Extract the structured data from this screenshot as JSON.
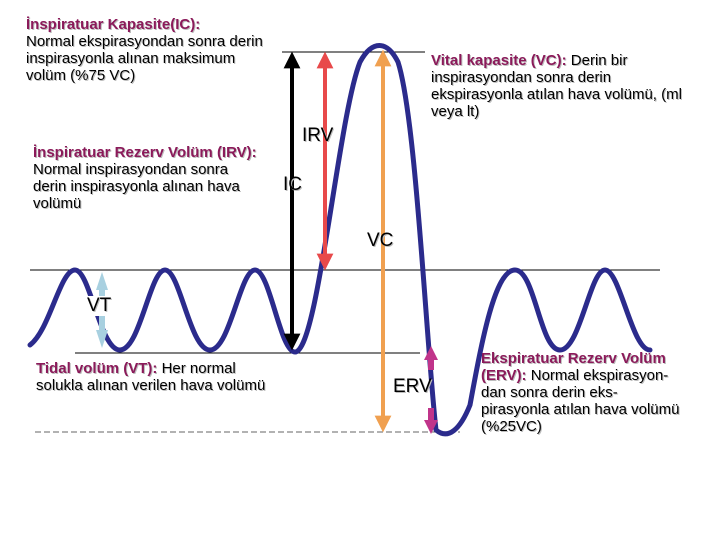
{
  "ic_definition": {
    "term": "İnspiratuar Kapasite(IC):",
    "text": "Normal ekspirasyondan sonra derin inspirasyonla alınan maksimum volüm (%75 VC)"
  },
  "irv_definition": {
    "term": "İnspiratuar Rezerv Volüm (IRV):",
    "text": "Normal inspirasyondan sonra derin inspirasyonla alınan hava volümü"
  },
  "vc_definition": {
    "term": "Vital kapasite (VC):",
    "text": "Derin bir inspirasyondan sonra derin ekspirasyonla atılan hava volümü, (ml veya lt)"
  },
  "vt_definition": {
    "term": "Tidal volüm (VT):",
    "text": "Her normal solukla alınan verilen hava volümü"
  },
  "erv_definition": {
    "term": "Ekspiratuar Rezerv Volüm (ERV):",
    "text": "Normal ekspirasyon-dan sonra derin eks-pirasyonla atılan hava volümü (%25VC)"
  },
  "labels": {
    "irv": "IRV",
    "ic": "IC",
    "vc": "VC",
    "vt": "VT",
    "erv": "ERV"
  },
  "colors": {
    "wave": "#2b2b8c",
    "irv_arrow": "#e8494a",
    "vc_arrow": "#f0a050",
    "ic_arrow": "#000000",
    "vt_arrow": "#a8d0e0",
    "erv_arrow": "#c0348a",
    "term": "#8b1a5a"
  },
  "icons": {
    "arrows": "double-headed-arrow"
  }
}
